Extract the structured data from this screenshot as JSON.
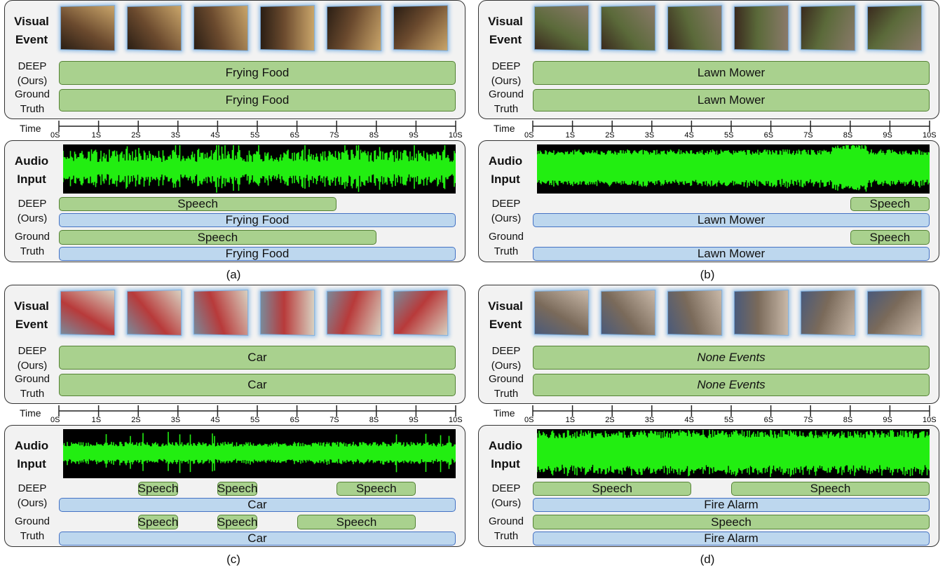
{
  "time_label": "Time",
  "visual_label": "Visual Event",
  "audio_label": "Audio Input",
  "deep_label": "DEEP (Ours)",
  "gt_label": "Ground Truth",
  "tick_labels": [
    "0S",
    "1S",
    "2S",
    "3S",
    "4S",
    "5S",
    "6S",
    "7S",
    "8S",
    "9S",
    "10S"
  ],
  "colors": {
    "segment_green": "#a9d18e",
    "segment_blue": "#bdd7ee",
    "waveform": "#22ee11"
  },
  "panels": [
    {
      "caption": "(a)",
      "visual_deep": [
        {
          "label": "Frying Food",
          "start": 0,
          "end": 10,
          "italic": false
        }
      ],
      "visual_gt": [
        {
          "label": "Frying Food",
          "start": 0,
          "end": 10,
          "italic": false
        }
      ],
      "audio_deep_row1": [
        {
          "label": "Speech",
          "start": 0,
          "end": 7,
          "color": "green"
        }
      ],
      "audio_deep_row2": [
        {
          "label": "Frying Food",
          "start": 0,
          "end": 10,
          "color": "blue"
        }
      ],
      "audio_gt_row1": [
        {
          "label": "Speech",
          "start": 0,
          "end": 8,
          "color": "green"
        }
      ],
      "audio_gt_row2": [
        {
          "label": "Frying Food",
          "start": 0,
          "end": 10,
          "color": "blue"
        }
      ]
    },
    {
      "caption": "(b)",
      "visual_deep": [
        {
          "label": "Lawn Mower",
          "start": 0,
          "end": 10,
          "italic": false
        }
      ],
      "visual_gt": [
        {
          "label": "Lawn Mower",
          "start": 0,
          "end": 10,
          "italic": false
        }
      ],
      "audio_deep_row1": [
        {
          "label": "Speech",
          "start": 8,
          "end": 10,
          "color": "green"
        }
      ],
      "audio_deep_row2": [
        {
          "label": "Lawn Mower",
          "start": 0,
          "end": 10,
          "color": "blue"
        }
      ],
      "audio_gt_row1": [
        {
          "label": "Speech",
          "start": 8,
          "end": 10,
          "color": "green"
        }
      ],
      "audio_gt_row2": [
        {
          "label": "Lawn Mower",
          "start": 0,
          "end": 10,
          "color": "blue"
        }
      ]
    },
    {
      "caption": "(c)",
      "visual_deep": [
        {
          "label": "Car",
          "start": 0,
          "end": 10,
          "italic": false
        }
      ],
      "visual_gt": [
        {
          "label": "Car",
          "start": 0,
          "end": 10,
          "italic": false
        }
      ],
      "audio_deep_row1": [
        {
          "label": "Speech",
          "start": 2,
          "end": 3,
          "color": "green"
        },
        {
          "label": "Speech",
          "start": 4,
          "end": 5,
          "color": "green"
        },
        {
          "label": "Speech",
          "start": 7,
          "end": 9,
          "color": "green"
        }
      ],
      "audio_deep_row2": [
        {
          "label": "Car",
          "start": 0,
          "end": 10,
          "color": "blue"
        }
      ],
      "audio_gt_row1": [
        {
          "label": "Speech",
          "start": 2,
          "end": 3,
          "color": "green"
        },
        {
          "label": "Speech",
          "start": 4,
          "end": 5,
          "color": "green"
        },
        {
          "label": "Speech",
          "start": 6,
          "end": 9,
          "color": "green"
        }
      ],
      "audio_gt_row2": [
        {
          "label": "Car",
          "start": 0,
          "end": 10,
          "color": "blue"
        }
      ]
    },
    {
      "caption": "(d)",
      "visual_deep": [
        {
          "label": "None Events",
          "start": 0,
          "end": 10,
          "italic": true
        }
      ],
      "visual_gt": [
        {
          "label": "None Events",
          "start": 0,
          "end": 10,
          "italic": true
        }
      ],
      "audio_deep_row1": [
        {
          "label": "Speech",
          "start": 0,
          "end": 4,
          "color": "green"
        },
        {
          "label": "Speech",
          "start": 5,
          "end": 10,
          "color": "green"
        }
      ],
      "audio_deep_row2": [
        {
          "label": "Fire Alarm",
          "start": 0,
          "end": 10,
          "color": "blue"
        }
      ],
      "audio_gt_row1": [
        {
          "label": "Speech",
          "start": 0,
          "end": 10,
          "color": "green"
        }
      ],
      "audio_gt_row2": [
        {
          "label": "Fire Alarm",
          "start": 0,
          "end": 10,
          "color": "blue"
        }
      ]
    }
  ]
}
